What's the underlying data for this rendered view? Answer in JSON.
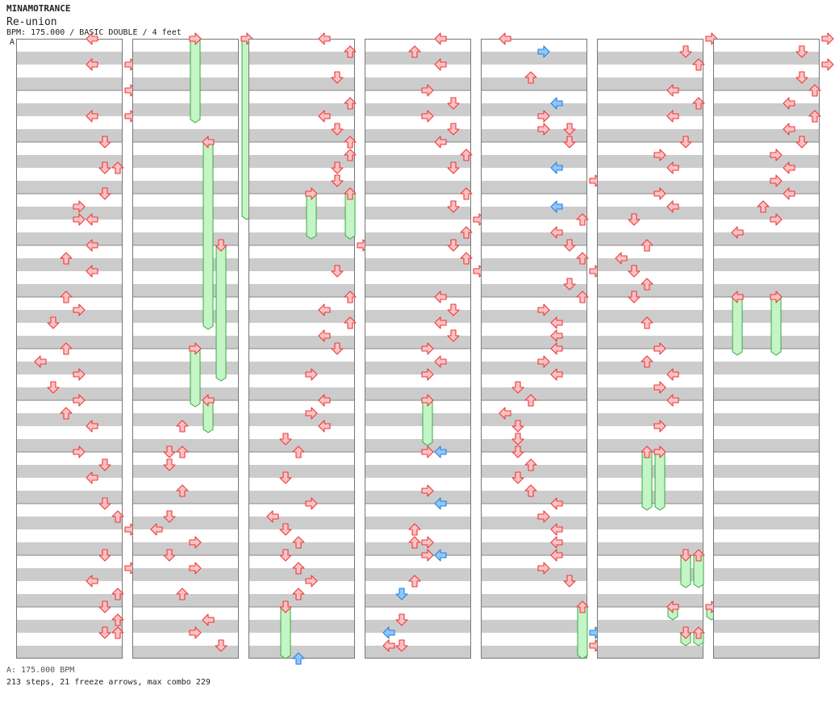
{
  "header": {
    "artist": "MINAMOTRANCE",
    "song": "Re-union",
    "info": "BPM: 175.000 / BASIC DOUBLE / 4 feet",
    "bpm_marker": "A"
  },
  "footer": {
    "bpm_legend": "A: 175.000 BPM",
    "stats": "213 steps, 21 freeze arrows, max combo 229"
  },
  "colors": {
    "arrow_fill": "#ffc2c2",
    "arrow_stroke": "#e8383c",
    "shock_fill": "#8cc8ff",
    "shock_stroke": "#2a7fd6",
    "freeze_fill": "#c4f5c4",
    "freeze_stroke": "#3aa84a",
    "stripe_gray": "#cccccc",
    "bpm_marker": "#3b78ff"
  },
  "chart_data": {
    "type": "stepchart",
    "lanes": [
      "P1 left",
      "P1 down",
      "P1 up",
      "P1 right",
      "P2 left",
      "P2 down",
      "P2 up",
      "P2 right"
    ],
    "columns_count": 7,
    "measures_per_column": 12,
    "freezes": [
      {
        "col": 1,
        "lane": 3,
        "start": 0,
        "end": 1.625
      },
      {
        "col": 1,
        "lane": 7,
        "start": 0,
        "end": 3.5
      },
      {
        "col": 1,
        "lane": 4,
        "start": 2,
        "end": 5.625
      },
      {
        "col": 1,
        "lane": 5,
        "start": 4,
        "end": 6.625
      },
      {
        "col": 1,
        "lane": 3,
        "start": 6,
        "end": 7.125
      },
      {
        "col": 1,
        "lane": 4,
        "start": 7,
        "end": 7.625
      },
      {
        "col": 2,
        "lane": 3,
        "start": 3,
        "end": 3.875
      },
      {
        "col": 2,
        "lane": 6,
        "start": 3,
        "end": 3.875
      },
      {
        "col": 2,
        "lane": 1,
        "start": 11,
        "end": 12
      },
      {
        "col": 3,
        "lane": 3,
        "start": 7,
        "end": 7.875
      },
      {
        "col": 4,
        "lane": 6,
        "start": 11,
        "end": 12
      },
      {
        "col": 5,
        "lane": 2,
        "start": 8,
        "end": 9.125
      },
      {
        "col": 5,
        "lane": 3,
        "start": 8,
        "end": 9.125
      },
      {
        "col": 5,
        "lane": 5,
        "start": 10,
        "end": 10.625
      },
      {
        "col": 5,
        "lane": 6,
        "start": 10,
        "end": 10.625
      },
      {
        "col": 5,
        "lane": 4,
        "start": 11,
        "end": 11.25
      },
      {
        "col": 5,
        "lane": 7,
        "start": 11,
        "end": 11.25
      },
      {
        "col": 5,
        "lane": 5,
        "start": 11.5,
        "end": 11.75
      },
      {
        "col": 5,
        "lane": 6,
        "start": 11.5,
        "end": 11.75
      },
      {
        "col": 6,
        "lane": 0,
        "start": 5,
        "end": 6.125
      },
      {
        "col": 6,
        "lane": 3,
        "start": 5,
        "end": 6.125
      }
    ],
    "shocks": [
      {
        "col": 2,
        "lane": 2,
        "pos": 12
      },
      {
        "col": 3,
        "lane": 4,
        "pos": 8
      },
      {
        "col": 3,
        "lane": 4,
        "pos": 9
      },
      {
        "col": 3,
        "lane": 4,
        "pos": 10
      },
      {
        "col": 3,
        "lane": 1,
        "pos": 10.75
      },
      {
        "col": 3,
        "lane": 0,
        "pos": 11.5
      },
      {
        "col": 4,
        "lane": 3,
        "pos": 0.25
      },
      {
        "col": 4,
        "lane": 4,
        "pos": 1.25
      },
      {
        "col": 4,
        "lane": 4,
        "pos": 2.5
      },
      {
        "col": 4,
        "lane": 4,
        "pos": 3.25
      },
      {
        "col": 4,
        "lane": 7,
        "pos": 11.5
      }
    ],
    "steps": [
      {
        "col": 0,
        "lane": 4,
        "pos": 0
      },
      {
        "col": 0,
        "lane": 4,
        "pos": 0.5
      },
      {
        "col": 0,
        "lane": 7,
        "pos": 0.5
      },
      {
        "col": 0,
        "lane": 7,
        "pos": 1
      },
      {
        "col": 0,
        "lane": 4,
        "pos": 1.5
      },
      {
        "col": 0,
        "lane": 7,
        "pos": 1.5
      },
      {
        "col": 0,
        "lane": 5,
        "pos": 2
      },
      {
        "col": 0,
        "lane": 5,
        "pos": 2.5
      },
      {
        "col": 0,
        "lane": 6,
        "pos": 2.5
      },
      {
        "col": 0,
        "lane": 5,
        "pos": 3
      },
      {
        "col": 0,
        "lane": 3,
        "pos": 3.25
      },
      {
        "col": 0,
        "lane": 3,
        "pos": 3.5
      },
      {
        "col": 0,
        "lane": 4,
        "pos": 3.5
      },
      {
        "col": 0,
        "lane": 4,
        "pos": 4
      },
      {
        "col": 0,
        "lane": 2,
        "pos": 4.25
      },
      {
        "col": 0,
        "lane": 4,
        "pos": 4.5
      },
      {
        "col": 0,
        "lane": 2,
        "pos": 5
      },
      {
        "col": 0,
        "lane": 3,
        "pos": 5.25
      },
      {
        "col": 0,
        "lane": 1,
        "pos": 5.5
      },
      {
        "col": 0,
        "lane": 2,
        "pos": 6
      },
      {
        "col": 0,
        "lane": 0,
        "pos": 6.25
      },
      {
        "col": 0,
        "lane": 3,
        "pos": 6.5
      },
      {
        "col": 0,
        "lane": 1,
        "pos": 6.75
      },
      {
        "col": 0,
        "lane": 3,
        "pos": 7
      },
      {
        "col": 0,
        "lane": 2,
        "pos": 7.25
      },
      {
        "col": 0,
        "lane": 4,
        "pos": 7.5
      },
      {
        "col": 0,
        "lane": 3,
        "pos": 8
      },
      {
        "col": 0,
        "lane": 5,
        "pos": 8.25
      },
      {
        "col": 0,
        "lane": 4,
        "pos": 8.5
      },
      {
        "col": 0,
        "lane": 5,
        "pos": 9
      },
      {
        "col": 0,
        "lane": 6,
        "pos": 9.25
      },
      {
        "col": 0,
        "lane": 7,
        "pos": 9.5
      },
      {
        "col": 0,
        "lane": 5,
        "pos": 10
      },
      {
        "col": 0,
        "lane": 7,
        "pos": 10.25
      },
      {
        "col": 0,
        "lane": 4,
        "pos": 10.5
      },
      {
        "col": 0,
        "lane": 6,
        "pos": 10.75
      },
      {
        "col": 0,
        "lane": 5,
        "pos": 11
      },
      {
        "col": 0,
        "lane": 6,
        "pos": 11.25
      },
      {
        "col": 0,
        "lane": 5,
        "pos": 11.5
      },
      {
        "col": 0,
        "lane": 6,
        "pos": 11.5
      },
      {
        "col": 1,
        "lane": 2,
        "pos": 7.5
      },
      {
        "col": 1,
        "lane": 1,
        "pos": 8
      },
      {
        "col": 1,
        "lane": 2,
        "pos": 8
      },
      {
        "col": 1,
        "lane": 1,
        "pos": 8.25
      },
      {
        "col": 1,
        "lane": 2,
        "pos": 8.75
      },
      {
        "col": 1,
        "lane": 1,
        "pos": 9.25
      },
      {
        "col": 1,
        "lane": 0,
        "pos": 9.5
      },
      {
        "col": 1,
        "lane": 3,
        "pos": 9.75
      },
      {
        "col": 1,
        "lane": 1,
        "pos": 10
      },
      {
        "col": 1,
        "lane": 3,
        "pos": 10.25
      },
      {
        "col": 1,
        "lane": 2,
        "pos": 10.75
      },
      {
        "col": 1,
        "lane": 4,
        "pos": 11.25
      },
      {
        "col": 1,
        "lane": 3,
        "pos": 11.5
      },
      {
        "col": 1,
        "lane": 5,
        "pos": 11.75
      },
      {
        "col": 2,
        "lane": 4,
        "pos": 0
      },
      {
        "col": 2,
        "lane": 6,
        "pos": 0.25
      },
      {
        "col": 2,
        "lane": 5,
        "pos": 0.75
      },
      {
        "col": 2,
        "lane": 6,
        "pos": 1.25
      },
      {
        "col": 2,
        "lane": 4,
        "pos": 1.5
      },
      {
        "col": 2,
        "lane": 5,
        "pos": 1.75
      },
      {
        "col": 2,
        "lane": 6,
        "pos": 2
      },
      {
        "col": 2,
        "lane": 6,
        "pos": 2.25
      },
      {
        "col": 2,
        "lane": 5,
        "pos": 2.5
      },
      {
        "col": 2,
        "lane": 5,
        "pos": 2.75
      },
      {
        "col": 2,
        "lane": 7,
        "pos": 4
      },
      {
        "col": 2,
        "lane": 5,
        "pos": 4.5
      },
      {
        "col": 2,
        "lane": 6,
        "pos": 5
      },
      {
        "col": 2,
        "lane": 4,
        "pos": 5.25
      },
      {
        "col": 2,
        "lane": 6,
        "pos": 5.5
      },
      {
        "col": 2,
        "lane": 4,
        "pos": 5.75
      },
      {
        "col": 2,
        "lane": 5,
        "pos": 6
      },
      {
        "col": 2,
        "lane": 3,
        "pos": 6.5
      },
      {
        "col": 2,
        "lane": 4,
        "pos": 7
      },
      {
        "col": 2,
        "lane": 3,
        "pos": 7.25
      },
      {
        "col": 2,
        "lane": 4,
        "pos": 7.5
      },
      {
        "col": 2,
        "lane": 1,
        "pos": 7.75
      },
      {
        "col": 2,
        "lane": 2,
        "pos": 8
      },
      {
        "col": 2,
        "lane": 1,
        "pos": 8.5
      },
      {
        "col": 2,
        "lane": 3,
        "pos": 9
      },
      {
        "col": 2,
        "lane": 0,
        "pos": 9.25
      },
      {
        "col": 2,
        "lane": 1,
        "pos": 9.5
      },
      {
        "col": 2,
        "lane": 2,
        "pos": 9.75
      },
      {
        "col": 2,
        "lane": 1,
        "pos": 10
      },
      {
        "col": 2,
        "lane": 2,
        "pos": 10.25
      },
      {
        "col": 2,
        "lane": 3,
        "pos": 10.5
      },
      {
        "col": 2,
        "lane": 2,
        "pos": 10.75
      },
      {
        "col": 3,
        "lane": 4,
        "pos": 0
      },
      {
        "col": 3,
        "lane": 2,
        "pos": 0.25
      },
      {
        "col": 3,
        "lane": 4,
        "pos": 0.5
      },
      {
        "col": 3,
        "lane": 3,
        "pos": 1
      },
      {
        "col": 3,
        "lane": 5,
        "pos": 1.25
      },
      {
        "col": 3,
        "lane": 3,
        "pos": 1.5
      },
      {
        "col": 3,
        "lane": 5,
        "pos": 1.75
      },
      {
        "col": 3,
        "lane": 4,
        "pos": 2
      },
      {
        "col": 3,
        "lane": 6,
        "pos": 2.25
      },
      {
        "col": 3,
        "lane": 5,
        "pos": 2.5
      },
      {
        "col": 3,
        "lane": 6,
        "pos": 3
      },
      {
        "col": 3,
        "lane": 5,
        "pos": 3.25
      },
      {
        "col": 3,
        "lane": 7,
        "pos": 3.5
      },
      {
        "col": 3,
        "lane": 6,
        "pos": 3.75
      },
      {
        "col": 3,
        "lane": 5,
        "pos": 4
      },
      {
        "col": 3,
        "lane": 6,
        "pos": 4.25
      },
      {
        "col": 3,
        "lane": 7,
        "pos": 4.5
      },
      {
        "col": 3,
        "lane": 4,
        "pos": 5
      },
      {
        "col": 3,
        "lane": 5,
        "pos": 5.25
      },
      {
        "col": 3,
        "lane": 4,
        "pos": 5.5
      },
      {
        "col": 3,
        "lane": 5,
        "pos": 5.75
      },
      {
        "col": 3,
        "lane": 3,
        "pos": 6
      },
      {
        "col": 3,
        "lane": 4,
        "pos": 6.25
      },
      {
        "col": 3,
        "lane": 3,
        "pos": 6.5
      },
      {
        "col": 3,
        "lane": 3,
        "pos": 8
      },
      {
        "col": 3,
        "lane": 3,
        "pos": 8.75
      },
      {
        "col": 3,
        "lane": 2,
        "pos": 9.5
      },
      {
        "col": 3,
        "lane": 2,
        "pos": 9.75
      },
      {
        "col": 3,
        "lane": 3,
        "pos": 9.75
      },
      {
        "col": 3,
        "lane": 3,
        "pos": 10
      },
      {
        "col": 3,
        "lane": 2,
        "pos": 10.5
      },
      {
        "col": 3,
        "lane": 1,
        "pos": 11.25
      },
      {
        "col": 3,
        "lane": 0,
        "pos": 11.75
      },
      {
        "col": 3,
        "lane": 1,
        "pos": 11.75
      },
      {
        "col": 4,
        "lane": 0,
        "pos": 0
      },
      {
        "col": 4,
        "lane": 2,
        "pos": 0.75
      },
      {
        "col": 4,
        "lane": 3,
        "pos": 1.5
      },
      {
        "col": 4,
        "lane": 5,
        "pos": 1.75
      },
      {
        "col": 4,
        "lane": 3,
        "pos": 1.75
      },
      {
        "col": 4,
        "lane": 5,
        "pos": 2
      },
      {
        "col": 4,
        "lane": 7,
        "pos": 2.75
      },
      {
        "col": 4,
        "lane": 6,
        "pos": 3.5
      },
      {
        "col": 4,
        "lane": 4,
        "pos": 3.75
      },
      {
        "col": 4,
        "lane": 5,
        "pos": 4
      },
      {
        "col": 4,
        "lane": 6,
        "pos": 4.25
      },
      {
        "col": 4,
        "lane": 7,
        "pos": 4.5
      },
      {
        "col": 4,
        "lane": 5,
        "pos": 4.75
      },
      {
        "col": 4,
        "lane": 6,
        "pos": 5
      },
      {
        "col": 4,
        "lane": 3,
        "pos": 5.25
      },
      {
        "col": 4,
        "lane": 4,
        "pos": 5.5
      },
      {
        "col": 4,
        "lane": 4,
        "pos": 5.75
      },
      {
        "col": 4,
        "lane": 4,
        "pos": 6
      },
      {
        "col": 4,
        "lane": 3,
        "pos": 6.25
      },
      {
        "col": 4,
        "lane": 4,
        "pos": 6.5
      },
      {
        "col": 4,
        "lane": 1,
        "pos": 6.75
      },
      {
        "col": 4,
        "lane": 2,
        "pos": 7
      },
      {
        "col": 4,
        "lane": 0,
        "pos": 7.25
      },
      {
        "col": 4,
        "lane": 1,
        "pos": 7.5
      },
      {
        "col": 4,
        "lane": 1,
        "pos": 7.75
      },
      {
        "col": 4,
        "lane": 1,
        "pos": 8
      },
      {
        "col": 4,
        "lane": 2,
        "pos": 8.25
      },
      {
        "col": 4,
        "lane": 1,
        "pos": 8.5
      },
      {
        "col": 4,
        "lane": 2,
        "pos": 8.75
      },
      {
        "col": 4,
        "lane": 4,
        "pos": 9
      },
      {
        "col": 4,
        "lane": 3,
        "pos": 9.25
      },
      {
        "col": 4,
        "lane": 4,
        "pos": 9.5
      },
      {
        "col": 4,
        "lane": 4,
        "pos": 9.75
      },
      {
        "col": 4,
        "lane": 4,
        "pos": 10
      },
      {
        "col": 4,
        "lane": 3,
        "pos": 10.25
      },
      {
        "col": 4,
        "lane": 5,
        "pos": 10.5
      },
      {
        "col": 4,
        "lane": 7,
        "pos": 11.5
      },
      {
        "col": 4,
        "lane": 7,
        "pos": 11.75
      },
      {
        "col": 5,
        "lane": 7,
        "pos": 0
      },
      {
        "col": 5,
        "lane": 5,
        "pos": 0.25
      },
      {
        "col": 5,
        "lane": 6,
        "pos": 0.5
      },
      {
        "col": 5,
        "lane": 4,
        "pos": 1
      },
      {
        "col": 5,
        "lane": 6,
        "pos": 1.25
      },
      {
        "col": 5,
        "lane": 4,
        "pos": 1.5
      },
      {
        "col": 5,
        "lane": 5,
        "pos": 2
      },
      {
        "col": 5,
        "lane": 3,
        "pos": 2.25
      },
      {
        "col": 5,
        "lane": 4,
        "pos": 2.5
      },
      {
        "col": 5,
        "lane": 3,
        "pos": 3
      },
      {
        "col": 5,
        "lane": 4,
        "pos": 3.25
      },
      {
        "col": 5,
        "lane": 1,
        "pos": 3.5
      },
      {
        "col": 5,
        "lane": 2,
        "pos": 4
      },
      {
        "col": 5,
        "lane": 0,
        "pos": 4.25
      },
      {
        "col": 5,
        "lane": 1,
        "pos": 4.5
      },
      {
        "col": 5,
        "lane": 2,
        "pos": 4.75
      },
      {
        "col": 5,
        "lane": 1,
        "pos": 5
      },
      {
        "col": 5,
        "lane": 2,
        "pos": 5.5
      },
      {
        "col": 5,
        "lane": 3,
        "pos": 6
      },
      {
        "col": 5,
        "lane": 2,
        "pos": 6.25
      },
      {
        "col": 5,
        "lane": 4,
        "pos": 6.5
      },
      {
        "col": 5,
        "lane": 3,
        "pos": 6.75
      },
      {
        "col": 5,
        "lane": 4,
        "pos": 7
      },
      {
        "col": 5,
        "lane": 3,
        "pos": 7.5
      },
      {
        "col": 6,
        "lane": 7,
        "pos": 0
      },
      {
        "col": 6,
        "lane": 5,
        "pos": 0.25
      },
      {
        "col": 6,
        "lane": 7,
        "pos": 0.5
      },
      {
        "col": 6,
        "lane": 5,
        "pos": 0.75
      },
      {
        "col": 6,
        "lane": 6,
        "pos": 1
      },
      {
        "col": 6,
        "lane": 4,
        "pos": 1.25
      },
      {
        "col": 6,
        "lane": 6,
        "pos": 1.5
      },
      {
        "col": 6,
        "lane": 4,
        "pos": 1.75
      },
      {
        "col": 6,
        "lane": 5,
        "pos": 2
      },
      {
        "col": 6,
        "lane": 3,
        "pos": 2.25
      },
      {
        "col": 6,
        "lane": 4,
        "pos": 2.5
      },
      {
        "col": 6,
        "lane": 3,
        "pos": 2.75
      },
      {
        "col": 6,
        "lane": 4,
        "pos": 3
      },
      {
        "col": 6,
        "lane": 2,
        "pos": 3.25
      },
      {
        "col": 6,
        "lane": 3,
        "pos": 3.5
      },
      {
        "col": 6,
        "lane": 0,
        "pos": 3.75
      }
    ]
  }
}
